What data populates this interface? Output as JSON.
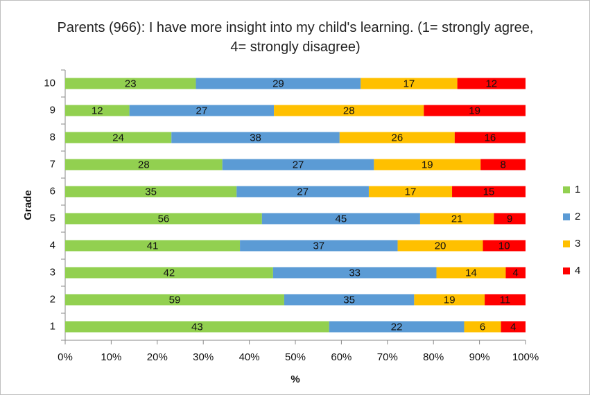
{
  "chart_data": {
    "type": "stacked_percent_bar",
    "orientation": "horizontal",
    "title": "Parents (966): I have more insight into my child's learning. (1= strongly agree, 4= strongly disagree)",
    "xlabel": "%",
    "ylabel": "Grade",
    "categories": [
      "1",
      "2",
      "3",
      "4",
      "5",
      "6",
      "7",
      "8",
      "9",
      "10"
    ],
    "series": [
      {
        "name": "1",
        "color": "#92d050",
        "values": [
          43,
          59,
          42,
          41,
          56,
          35,
          28,
          24,
          12,
          23
        ]
      },
      {
        "name": "2",
        "color": "#5b9bd5",
        "values": [
          22,
          35,
          33,
          37,
          45,
          27,
          27,
          38,
          27,
          29
        ]
      },
      {
        "name": "3",
        "color": "#ffc000",
        "values": [
          6,
          19,
          14,
          20,
          21,
          17,
          19,
          26,
          28,
          17
        ]
      },
      {
        "name": "4",
        "color": "#ff0000",
        "values": [
          4,
          11,
          4,
          10,
          9,
          15,
          8,
          16,
          19,
          12
        ]
      }
    ],
    "xlim": [
      0,
      100
    ],
    "xticks": [
      {
        "value": 0,
        "label": "0%"
      },
      {
        "value": 10,
        "label": "10%"
      },
      {
        "value": 20,
        "label": "20%"
      },
      {
        "value": 30,
        "label": "30%"
      },
      {
        "value": 40,
        "label": "40%"
      },
      {
        "value": 50,
        "label": "50%"
      },
      {
        "value": 60,
        "label": "60%"
      },
      {
        "value": 70,
        "label": "70%"
      },
      {
        "value": 80,
        "label": "80%"
      },
      {
        "value": 90,
        "label": "90%"
      },
      {
        "value": 100,
        "label": "100%"
      }
    ],
    "legend": "right",
    "grid": false
  }
}
